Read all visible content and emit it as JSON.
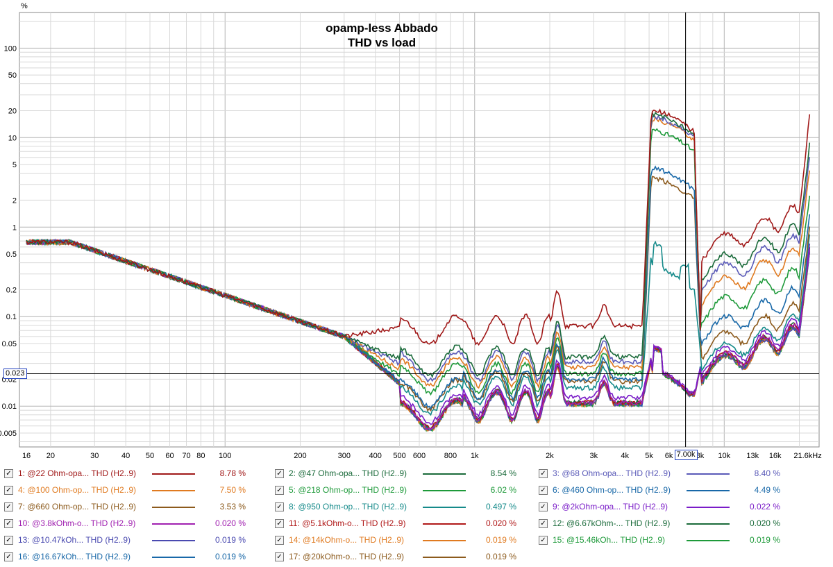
{
  "chart_data": {
    "type": "line",
    "title": [
      "opamp-less Abbado",
      "THD vs load"
    ],
    "y_unit": "%",
    "x_unit": "kHz",
    "x_scale": "log",
    "y_scale": "log",
    "xlim": [
      15,
      24000
    ],
    "ylim": [
      0.0035,
      250
    ],
    "grid": true,
    "x_ticks": [
      {
        "v": 16,
        "l": "16"
      },
      {
        "v": 20,
        "l": "20"
      },
      {
        "v": 30,
        "l": "30"
      },
      {
        "v": 40,
        "l": "40"
      },
      {
        "v": 50,
        "l": "50"
      },
      {
        "v": 60,
        "l": "60"
      },
      {
        "v": 70,
        "l": "70"
      },
      {
        "v": 80,
        "l": "80"
      },
      {
        "v": 100,
        "l": "100"
      },
      {
        "v": 200,
        "l": "200"
      },
      {
        "v": 300,
        "l": "300"
      },
      {
        "v": 400,
        "l": "400"
      },
      {
        "v": 500,
        "l": "500"
      },
      {
        "v": 600,
        "l": "600"
      },
      {
        "v": 800,
        "l": "800"
      },
      {
        "v": 1000,
        "l": "1k"
      },
      {
        "v": 2000,
        "l": "2k"
      },
      {
        "v": 3000,
        "l": "3k"
      },
      {
        "v": 4000,
        "l": "4k"
      },
      {
        "v": 5000,
        "l": "5k"
      },
      {
        "v": 6000,
        "l": "6k"
      },
      {
        "v": 8000,
        "l": "8k"
      },
      {
        "v": 10000,
        "l": "10k"
      },
      {
        "v": 13000,
        "l": "13k"
      },
      {
        "v": 16000,
        "l": "16k"
      },
      {
        "v": 21600,
        "l": "21.6kHz"
      }
    ],
    "y_ticks": [
      {
        "v": 100,
        "l": "100"
      },
      {
        "v": 50,
        "l": "50"
      },
      {
        "v": 20,
        "l": "20"
      },
      {
        "v": 10,
        "l": "10"
      },
      {
        "v": 5,
        "l": "5"
      },
      {
        "v": 2,
        "l": "2"
      },
      {
        "v": 1,
        "l": "1"
      },
      {
        "v": 0.5,
        "l": "0.5"
      },
      {
        "v": 0.2,
        "l": "0.2"
      },
      {
        "v": 0.1,
        "l": "0.1"
      },
      {
        "v": 0.05,
        "l": "0.05"
      },
      {
        "v": 0.02,
        "l": "0.02"
      },
      {
        "v": 0.01,
        "l": "0.01"
      },
      {
        "v": 0.005,
        "l": "0.005"
      }
    ],
    "cursor": {
      "x": 7000,
      "x_label": "7.00k",
      "y": 0.023,
      "y_label": "0.023"
    },
    "series": [
      {
        "id": "s1",
        "legend": "1: @22 Ohm-opa... THD (H2..9)",
        "color": "#a01818",
        "value": "8.78 %",
        "mid": 0.075,
        "peak": 20,
        "high": 1.5,
        "end": 18
      },
      {
        "id": "s2",
        "legend": "2: @47 Ohm-opa... THD (H2..9)",
        "color": "#1a6a3a",
        "value": "8.54 %",
        "mid": 0.034,
        "peak": 18,
        "high": 0.9,
        "end": 8.5
      },
      {
        "id": "s3",
        "legend": "3: @68 Ohm-opa... THD (H2..9)",
        "color": "#5a5ab8",
        "value": "8.40 %",
        "mid": 0.03,
        "peak": 17,
        "high": 0.7,
        "end": 6.5
      },
      {
        "id": "s4",
        "legend": "4: @100 Ohm-op... THD (H2..9)",
        "color": "#e07a20",
        "value": "7.50 %",
        "mid": 0.026,
        "peak": 16,
        "high": 0.5,
        "end": 4.5
      },
      {
        "id": "s5",
        "legend": "5: @218 Ohm-op... THD (H2..9)",
        "color": "#1e9a3a",
        "value": "6.02 %",
        "mid": 0.022,
        "peak": 12,
        "high": 0.3,
        "end": 2.3
      },
      {
        "id": "s6",
        "legend": "6: @460 Ohm-op... THD (H2..9)",
        "color": "#1868a8",
        "value": "4.49 %",
        "mid": 0.019,
        "peak": 4.5,
        "high": 0.18,
        "end": 1.4
      },
      {
        "id": "s7",
        "legend": "7: @660 Ohm-op... THD (H2..9)",
        "color": "#8c5a1c",
        "value": "3.53 %",
        "mid": 0.018,
        "peak": 3.5,
        "high": 0.12,
        "end": 1.0
      },
      {
        "id": "s8",
        "legend": "8: @950 Ohm-op... THD (H2..9)",
        "color": "#158a8a",
        "value": "0.497 %",
        "mid": 0.016,
        "peak": 0.5,
        "high": 0.09,
        "end": 0.8
      },
      {
        "id": "s9",
        "legend": "9: @2kOhm-opa... THD (H2..9)",
        "color": "#7a1cc8",
        "value": "0.022 %",
        "mid": 0.0125,
        "peak": 0.035,
        "high": 0.08,
        "end": 0.7
      },
      {
        "id": "s10",
        "legend": "10: @3.8kOhm-o... THD (H2..9)",
        "color": "#a020b0",
        "value": "0.020 %",
        "mid": 0.011,
        "peak": 0.034,
        "high": 0.07,
        "end": 0.6
      },
      {
        "id": "s11",
        "legend": "11: @5.1kOhm-o... THD (H2..9)",
        "color": "#b01818",
        "value": "0.020 %",
        "mid": 0.011,
        "peak": 0.034,
        "high": 0.07,
        "end": 0.6
      },
      {
        "id": "s12",
        "legend": "12: @6.67kOhm-... THD (H2..9)",
        "color": "#1a6a3a",
        "value": "0.020 %",
        "mid": 0.011,
        "peak": 0.034,
        "high": 0.07,
        "end": 0.6
      },
      {
        "id": "s13",
        "legend": "13: @10.47kOh... THD (H2..9)",
        "color": "#4a4ab0",
        "value": "0.019 %",
        "mid": 0.0105,
        "peak": 0.033,
        "high": 0.065,
        "end": 0.55
      },
      {
        "id": "s14",
        "legend": "14: @14kOhm-o... THD (H2..9)",
        "color": "#e07a20",
        "value": "0.019 %",
        "mid": 0.0105,
        "peak": 0.033,
        "high": 0.065,
        "end": 0.55
      },
      {
        "id": "s15",
        "legend": "15: @15.46kOh... THD (H2..9)",
        "color": "#1e9a3a",
        "value": "0.019 %",
        "mid": 0.0105,
        "peak": 0.033,
        "high": 0.065,
        "end": 0.55
      },
      {
        "id": "s16",
        "legend": "16: @16.67kOh... THD (H2..9)",
        "color": "#1868a8",
        "value": "0.019 %",
        "mid": 0.0105,
        "peak": 0.033,
        "high": 0.065,
        "end": 0.55
      },
      {
        "id": "s17",
        "legend": "17: @20kOhm-o... THD (H2..9)",
        "color": "#8c5a1c",
        "value": "0.019 %",
        "mid": 0.0105,
        "peak": 0.033,
        "high": 0.065,
        "end": 0.55
      }
    ]
  },
  "legend_checkbox_glyph": "✓"
}
